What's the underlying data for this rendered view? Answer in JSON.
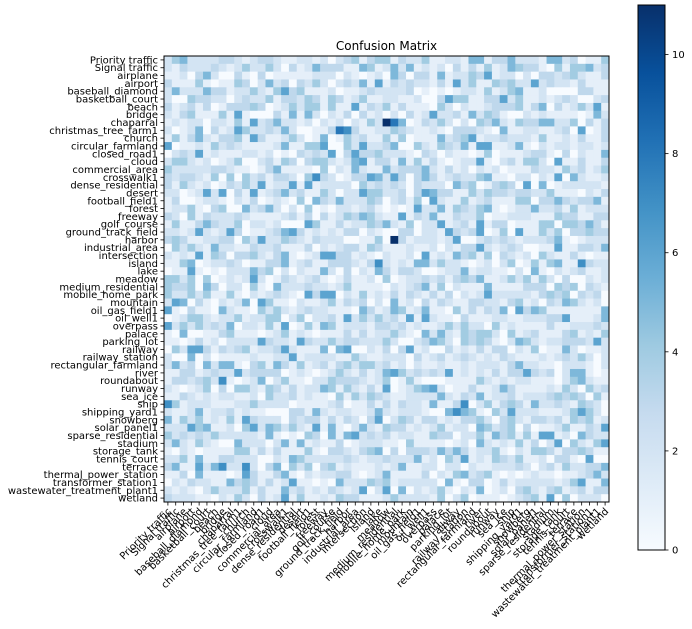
{
  "chart_data": {
    "type": "heatmap",
    "title": "Confusion Matrix",
    "colormap": "Blues",
    "colorbar": {
      "min": 0,
      "max": 11,
      "ticks": [
        0,
        2,
        4,
        6,
        8,
        10
      ]
    },
    "labels": [
      "Priority traffic",
      "Signal traffic",
      "airplane",
      "airport",
      "baseball_diamond",
      "basketball_court",
      "beach",
      "bridge",
      "chaparral",
      "christmas_tree_farm1",
      "church",
      "circular_farmland",
      "closed_road1",
      "cloud",
      "commercial_area",
      "crosswalk1",
      "dense_residential",
      "desert",
      "football_field1",
      "forest",
      "freeway",
      "golf_course",
      "ground_track_field",
      "harbor",
      "industrial_area",
      "intersection",
      "island",
      "lake",
      "meadow",
      "medium_residential",
      "mobile_home_park",
      "mountain",
      "oil_gas_field1",
      "oil_well1",
      "overpass",
      "palace",
      "parking_lot",
      "railway",
      "railway_station",
      "rectangular_farmland",
      "river",
      "roundabout",
      "runway",
      "sea_ice",
      "ship",
      "shipping_yard1",
      "snowberg",
      "solar_panel1",
      "sparse_residential",
      "stadium",
      "storage_tank",
      "tennis_court",
      "terrace",
      "thermal_power_station",
      "transformer_station1",
      "wastewater_treatment_plant1",
      "wetland"
    ],
    "highlights": [
      {
        "row": "chaparral",
        "col": "meadow",
        "value": 11
      },
      {
        "row": "harbor",
        "col": "medium_residential",
        "value": 11
      },
      {
        "row": "christmas_tree_farm1",
        "col": "ground_track_field",
        "value": 8
      },
      {
        "row": "chaparral",
        "col": "medium_residential",
        "value": 8
      },
      {
        "row": "christmas_tree_farm1",
        "col": "harbor",
        "value": 7
      },
      {
        "row": "railway",
        "col": "mountain",
        "value": 6
      },
      {
        "row": "shipping_yard1",
        "col": "railway",
        "value": 7
      }
    ]
  }
}
